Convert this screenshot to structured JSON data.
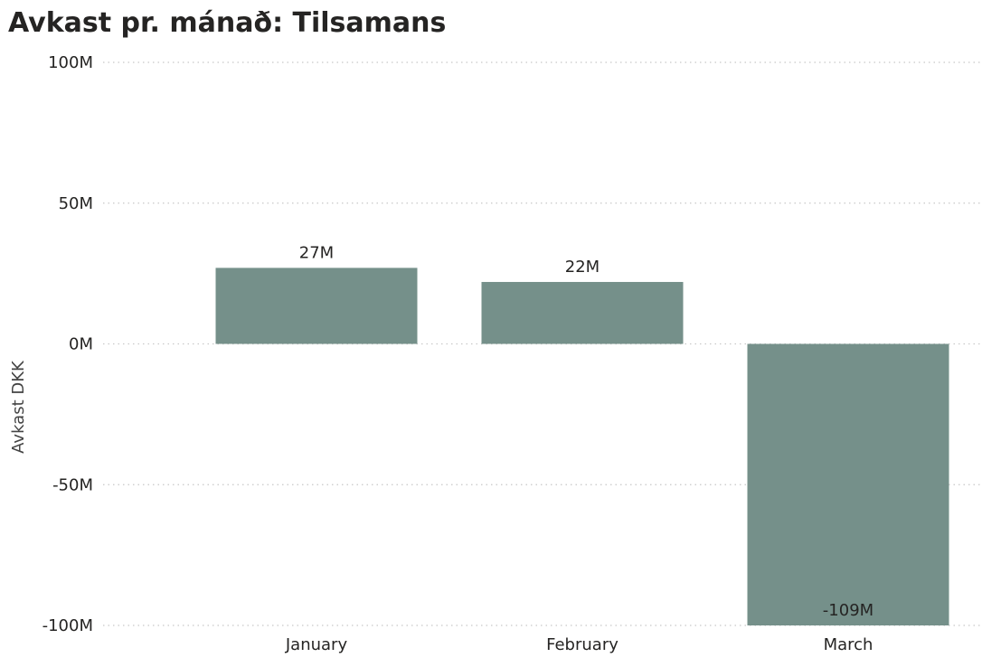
{
  "chart_data": {
    "type": "bar",
    "title": "Avkast pr. mánað: Tilsamans",
    "xlabel": "",
    "ylabel": "Avkast DKK",
    "categories": [
      "January",
      "February",
      "March"
    ],
    "series": [
      {
        "values": [
          27000000,
          22000000,
          -109000000
        ],
        "data_labels": [
          "27M",
          "22M",
          "-109M"
        ]
      }
    ],
    "ylim": [
      -100000000,
      100000000
    ],
    "yticks": [
      100000000,
      50000000,
      0,
      -50000000,
      -100000000
    ],
    "ytick_labels": [
      "100M",
      "50M",
      "0M",
      "-50M",
      "-100M"
    ],
    "grid": true,
    "grid_style": "dotted",
    "legend": "none",
    "bar_color": "#75908A"
  }
}
